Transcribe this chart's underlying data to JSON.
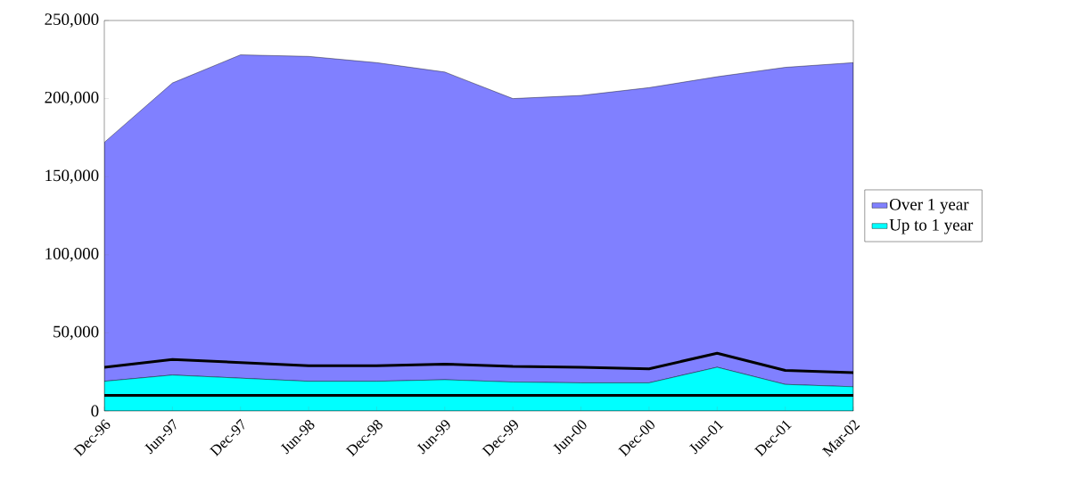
{
  "chart_data": {
    "type": "area",
    "stacked": true,
    "legend": "right",
    "grid": false,
    "categories": [
      "Dec-96",
      "Jun-97",
      "Dec-97",
      "Jun-98",
      "Dec-98",
      "Jun-99",
      "Dec-99",
      "Jun-00",
      "Dec-00",
      "Jun-01",
      "Dec-01",
      "Mar-02"
    ],
    "series": [
      {
        "name": "Up to 1 year",
        "color": "#00ffff",
        "values": [
          19000,
          23000,
          21000,
          19000,
          19000,
          20000,
          18500,
          18000,
          18000,
          28000,
          17000,
          15500
        ]
      },
      {
        "name": "Over 1 year",
        "color": "#8080ff",
        "values": [
          153000,
          187000,
          207000,
          208000,
          204000,
          197000,
          181500,
          184000,
          189000,
          186000,
          203000,
          207500
        ]
      },
      {
        "type": "line",
        "color": "#000000",
        "values": [
          28000,
          33000,
          31000,
          29000,
          29000,
          30000,
          28500,
          28000,
          27000,
          37000,
          26000,
          24500
        ]
      },
      {
        "type": "line",
        "color": "#000000",
        "values": [
          10000,
          10000,
          10000,
          10000,
          10000,
          10000,
          10000,
          10000,
          10000,
          10000,
          10000,
          10000
        ]
      }
    ],
    "ylim": [
      0,
      250000
    ],
    "yticks": [
      0,
      {
        "value": 50000,
        "label": "50,000"
      },
      {
        "value": 100000,
        "label": "100,000"
      },
      {
        "value": 150000,
        "label": "150,000"
      },
      {
        "value": 200000,
        "label": "200,000"
      },
      {
        "value": 250000,
        "label": "250,000"
      }
    ]
  }
}
